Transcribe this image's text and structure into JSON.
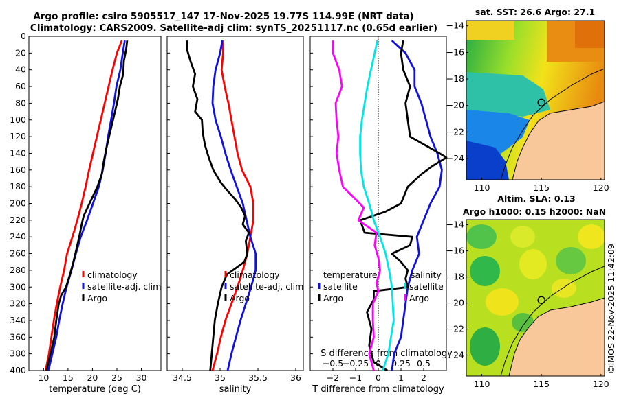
{
  "title_line1": "Argo profile: csiro 5905517_147 17-Nov-2025 19.77S 114.99E (NRT data)",
  "title_line2": "Climatology: CARS2009. Satellite-adj clim: synTS_20251117.nc (0.65d earlier)",
  "sst_title": "sat. SST: 26.6 Argo: 27.1",
  "sla_title1": "Altim. SLA: 0.13",
  "sla_title2": "Argo h1000: 0.15 h2000: NaN",
  "credit": "©IMOS 22-Nov-2025 11:42:09",
  "colors": {
    "climatology": "#ff0000",
    "satellite": "#1010e0",
    "argo": "#000000",
    "sal_climatology": "#00e5e5",
    "sal_satellite": "#ff00ff",
    "land": "#f8c89a"
  },
  "chart_data": [
    {
      "type": "line",
      "name": "temperature",
      "xlabel": "temperature (deg C)",
      "ylabel": "",
      "xlim": [
        7,
        34
      ],
      "ylim": [
        0,
        400
      ],
      "y_reversed": true,
      "xticks": [
        10,
        15,
        20,
        25,
        30
      ],
      "yticks": [
        0,
        20,
        40,
        60,
        80,
        100,
        120,
        140,
        160,
        180,
        200,
        220,
        240,
        260,
        280,
        300,
        320,
        340,
        360,
        380,
        400
      ],
      "legend": [
        "climatology",
        "satellite-adj. clim",
        "Argo"
      ],
      "legend_position": "bottom-right",
      "series": [
        {
          "name": "climatology",
          "color": "#ff0000",
          "depth": [
            5,
            20,
            40,
            60,
            80,
            100,
            120,
            140,
            160,
            180,
            200,
            220,
            240,
            260,
            280,
            300,
            320,
            340,
            360,
            380,
            400
          ],
          "values": [
            26.0,
            25.0,
            24.1,
            23.3,
            22.5,
            21.7,
            20.9,
            20.1,
            19.3,
            18.6,
            17.8,
            16.9,
            15.9,
            14.8,
            14.2,
            13.4,
            12.7,
            12.1,
            11.6,
            11.1,
            10.4
          ]
        },
        {
          "name": "satellite-adj. clim",
          "color": "#1010e0",
          "depth": [
            5,
            20,
            40,
            60,
            80,
            100,
            120,
            140,
            160,
            180,
            200,
            220,
            240,
            260,
            280,
            300,
            320,
            340,
            360,
            380,
            400
          ],
          "values": [
            26.6,
            26.2,
            25.7,
            24.9,
            24.4,
            23.8,
            23.2,
            22.7,
            22.1,
            21.3,
            20.1,
            18.9,
            17.6,
            16.6,
            15.7,
            14.7,
            13.9,
            13.2,
            12.6,
            11.8,
            11.0
          ]
        },
        {
          "name": "Argo",
          "color": "#000000",
          "depth": [
            5,
            15,
            30,
            45,
            60,
            75,
            90,
            105,
            120,
            135,
            150,
            165,
            180,
            195,
            205,
            215,
            225,
            240,
            255,
            270,
            285,
            300,
            310,
            320,
            340,
            360,
            380,
            400
          ],
          "values": [
            27.1,
            26.9,
            26.4,
            26.3,
            25.6,
            25.2,
            24.6,
            24.0,
            23.4,
            22.8,
            22.3,
            21.9,
            21.0,
            19.8,
            19.0,
            18.2,
            17.8,
            17.3,
            16.7,
            16.1,
            15.4,
            14.6,
            13.6,
            13.1,
            12.6,
            12.2,
            11.4,
            10.6
          ]
        }
      ]
    },
    {
      "type": "line",
      "name": "salinity",
      "xlabel": "salinity",
      "ylabel": "",
      "xlim": [
        34.3,
        36.1
      ],
      "ylim": [
        0,
        400
      ],
      "y_reversed": true,
      "xticks": [
        34.5,
        35,
        35.5,
        36
      ],
      "legend": [
        "climatology",
        "satellite-adj. clim",
        "Argo"
      ],
      "legend_position": "bottom-right",
      "series": [
        {
          "name": "climatology",
          "color": "#ff0000",
          "depth": [
            5,
            20,
            40,
            60,
            80,
            100,
            120,
            140,
            160,
            180,
            200,
            220,
            240,
            260,
            280,
            300,
            320,
            340,
            360,
            380,
            400
          ],
          "values": [
            35.03,
            35.04,
            35.02,
            35.06,
            35.11,
            35.15,
            35.19,
            35.23,
            35.29,
            35.4,
            35.44,
            35.44,
            35.4,
            35.36,
            35.3,
            35.23,
            35.15,
            35.07,
            35.01,
            34.96,
            34.9
          ]
        },
        {
          "name": "satellite-adj. clim",
          "color": "#1010e0",
          "depth": [
            5,
            20,
            40,
            60,
            80,
            100,
            120,
            140,
            160,
            180,
            200,
            220,
            240,
            260,
            280,
            300,
            320,
            340,
            360,
            380,
            400
          ],
          "values": [
            35.03,
            35.0,
            34.94,
            34.91,
            34.9,
            34.94,
            35.01,
            35.07,
            35.14,
            35.22,
            35.3,
            35.35,
            35.4,
            35.47,
            35.47,
            35.41,
            35.34,
            35.27,
            35.21,
            35.15,
            35.1
          ]
        },
        {
          "name": "Argo",
          "color": "#000000",
          "depth": [
            5,
            15,
            30,
            45,
            60,
            75,
            90,
            100,
            115,
            130,
            145,
            160,
            175,
            185,
            195,
            205,
            215,
            225,
            235,
            245,
            260,
            270,
            285,
            300,
            320,
            340,
            360,
            380,
            400
          ],
          "values": [
            34.56,
            34.56,
            34.61,
            34.67,
            34.64,
            34.7,
            34.67,
            34.76,
            34.77,
            34.8,
            34.85,
            34.91,
            35.01,
            35.1,
            35.2,
            35.28,
            35.33,
            35.3,
            35.38,
            35.34,
            35.36,
            35.32,
            35.09,
            35.02,
            34.97,
            34.93,
            34.91,
            34.89,
            34.87
          ]
        }
      ]
    },
    {
      "type": "line",
      "name": "difference from climatology",
      "xlabel": "T difference from climatology",
      "xlabel2": "S difference from climatology",
      "xlim": [
        -3,
        3
      ],
      "x2lim": [
        -0.75,
        0.75
      ],
      "ylim": [
        0,
        400
      ],
      "y_reversed": true,
      "xticks": [
        -2,
        -1,
        0,
        1,
        2
      ],
      "xticks2": [
        -0.5,
        -0.25,
        0,
        0.25,
        0.5
      ],
      "legend_temperature_title": "temperature",
      "legend_temperature": [
        "satellite",
        "Argo"
      ],
      "legend_salinity_title": "salinity",
      "legend_salinity": [
        "satellite",
        "Argo"
      ],
      "series": [
        {
          "name": "T satellite",
          "color": "#1010e0",
          "axis": "T",
          "depth": [
            5,
            20,
            40,
            60,
            80,
            100,
            120,
            140,
            160,
            180,
            200,
            220,
            240,
            260,
            280,
            300,
            320,
            340,
            360,
            380,
            400
          ],
          "values": [
            0.6,
            1.2,
            1.6,
            1.6,
            1.9,
            2.1,
            2.3,
            2.6,
            2.8,
            2.7,
            2.3,
            2.0,
            1.7,
            1.8,
            1.5,
            1.3,
            1.2,
            1.1,
            1.0,
            0.7,
            0.6
          ]
        },
        {
          "name": "T Argo",
          "color": "#000000",
          "axis": "T",
          "depth": [
            5,
            20,
            40,
            60,
            80,
            100,
            120,
            140,
            145,
            155,
            165,
            180,
            200,
            210,
            220,
            235,
            240,
            250,
            260,
            270,
            280,
            290,
            300,
            305,
            315,
            330,
            350,
            370,
            390,
            400
          ],
          "values": [
            1.1,
            1.0,
            1.1,
            1.4,
            1.2,
            1.3,
            1.4,
            2.7,
            3.0,
            2.4,
            1.9,
            1.3,
            1.0,
            0.3,
            -0.8,
            -0.6,
            1.5,
            1.4,
            0.6,
            1.0,
            1.3,
            1.2,
            1.3,
            -0.2,
            -0.2,
            -0.5,
            -0.3,
            -0.4,
            -0.2,
            0.4
          ]
        },
        {
          "name": "S satellite",
          "color": "#00e5e5",
          "axis": "S",
          "depth": [
            5,
            20,
            40,
            60,
            80,
            100,
            120,
            140,
            160,
            180,
            200,
            220,
            240,
            260,
            280,
            300,
            320,
            340,
            360,
            380,
            400
          ],
          "values": [
            -0.01,
            -0.04,
            -0.08,
            -0.12,
            -0.15,
            -0.18,
            -0.2,
            -0.2,
            -0.19,
            -0.16,
            -0.1,
            -0.05,
            0.02,
            0.08,
            0.12,
            0.15,
            0.16,
            0.17,
            0.14,
            0.11,
            0.05
          ]
        },
        {
          "name": "S Argo",
          "color": "#ff00ff",
          "axis": "S",
          "depth": [
            5,
            20,
            40,
            60,
            80,
            100,
            120,
            140,
            160,
            180,
            195,
            205,
            220,
            235,
            250,
            265,
            280,
            295,
            305,
            320,
            340,
            360,
            380,
            400
          ],
          "values": [
            -0.5,
            -0.5,
            -0.43,
            -0.4,
            -0.47,
            -0.46,
            -0.44,
            -0.46,
            -0.43,
            -0.39,
            -0.25,
            -0.16,
            -0.22,
            -0.02,
            -0.04,
            0.0,
            0.02,
            -0.02,
            0.0,
            -0.06,
            -0.06,
            -0.05,
            -0.1,
            -0.05
          ]
        }
      ]
    },
    {
      "type": "heatmap",
      "name": "satellite SST map",
      "xticks": [
        110,
        115,
        120
      ],
      "yticks": [
        -14,
        -16,
        -18,
        -20,
        -22,
        -24
      ],
      "xlim": [
        108.7,
        120.3
      ],
      "ylim": [
        -25.6,
        -13.6
      ],
      "marker": [
        115.0,
        -19.77
      ]
    },
    {
      "type": "heatmap",
      "name": "sea level anomaly map",
      "xticks": [
        110,
        115,
        120
      ],
      "yticks": [
        -14,
        -16,
        -18,
        -20,
        -22,
        -24
      ],
      "xlim": [
        108.7,
        120.3
      ],
      "ylim": [
        -25.6,
        -13.6
      ],
      "marker": [
        115.0,
        -19.77
      ]
    }
  ]
}
